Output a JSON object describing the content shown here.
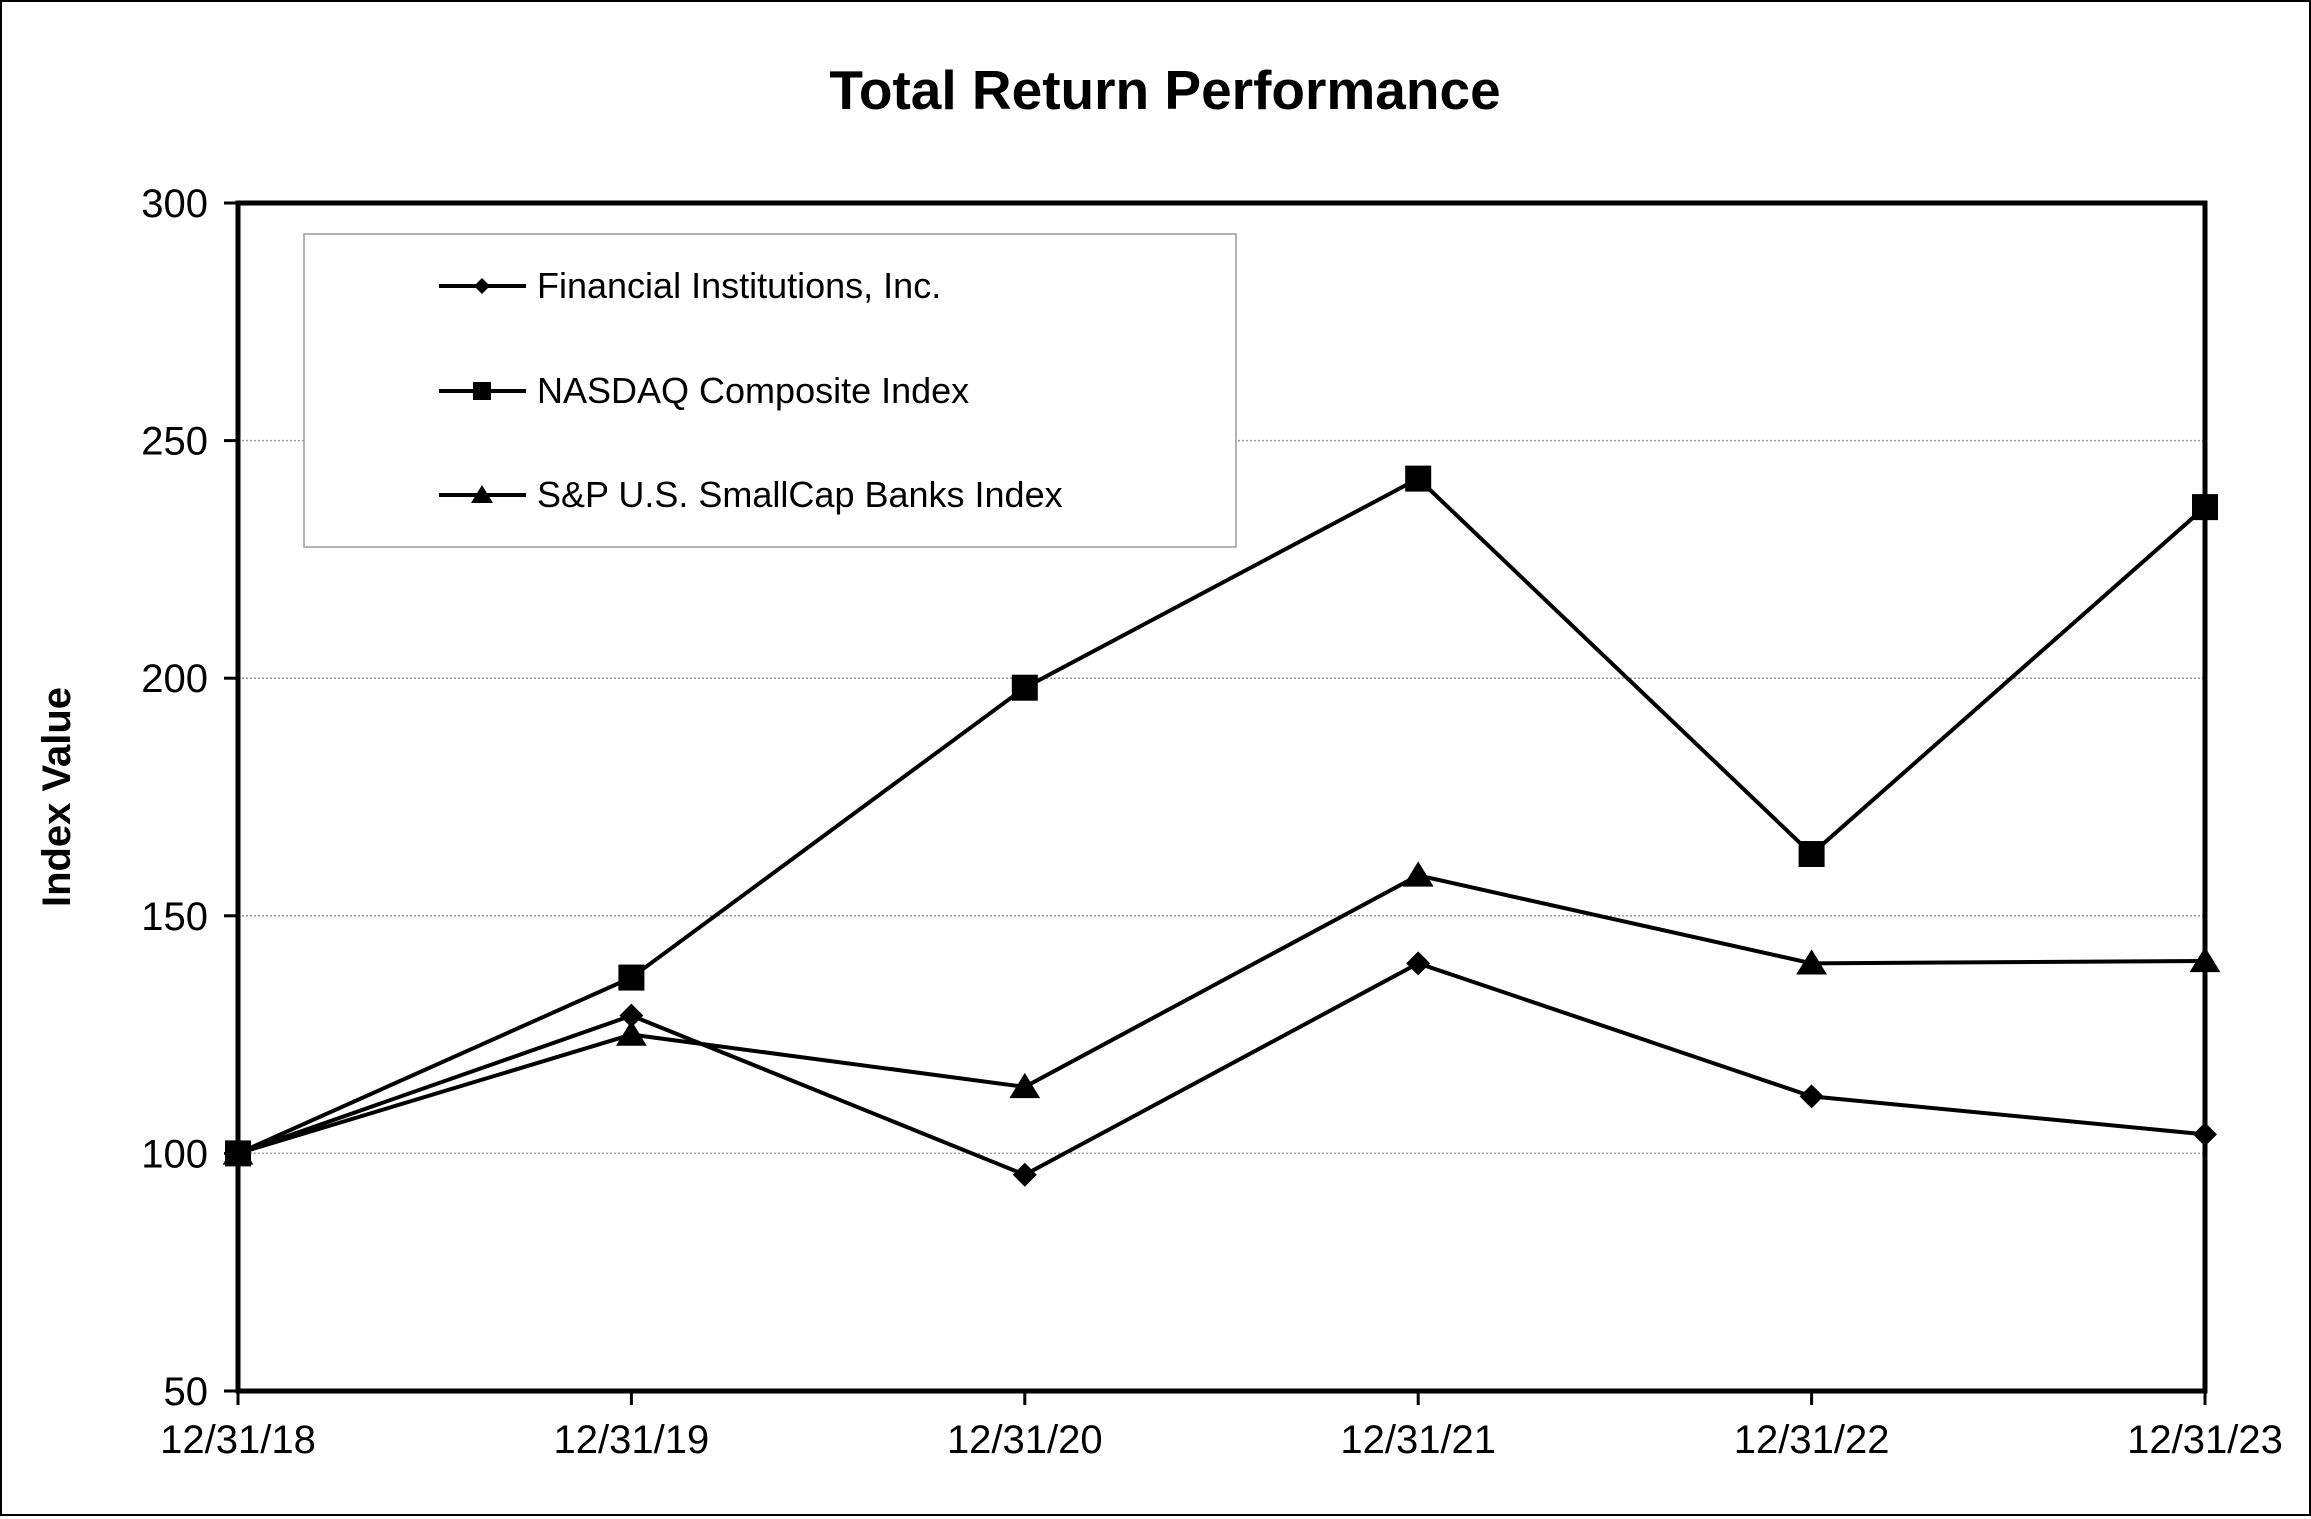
{
  "chart_data": {
    "type": "line",
    "title": "Total Return Performance",
    "xlabel": "",
    "ylabel": "Index Value",
    "categories": [
      "12/31/18",
      "12/31/19",
      "12/31/20",
      "12/31/21",
      "12/31/22",
      "12/31/23"
    ],
    "ylim": [
      50,
      300
    ],
    "yticks": [
      50,
      100,
      150,
      200,
      250,
      300
    ],
    "grid": true,
    "legend_position": "top-left",
    "series": [
      {
        "name": "Financial Institutions, Inc.",
        "marker": "diamond",
        "color": "#000000",
        "values": [
          100,
          129,
          95.5,
          140,
          112,
          104
        ]
      },
      {
        "name": "NASDAQ Composite Index",
        "marker": "square",
        "color": "#000000",
        "values": [
          100,
          137,
          198,
          242,
          163,
          236
        ]
      },
      {
        "name": "S&P U.S. SmallCap Banks Index",
        "marker": "triangle",
        "color": "#000000",
        "values": [
          100,
          125,
          114,
          158.5,
          140,
          140.5
        ]
      }
    ]
  }
}
